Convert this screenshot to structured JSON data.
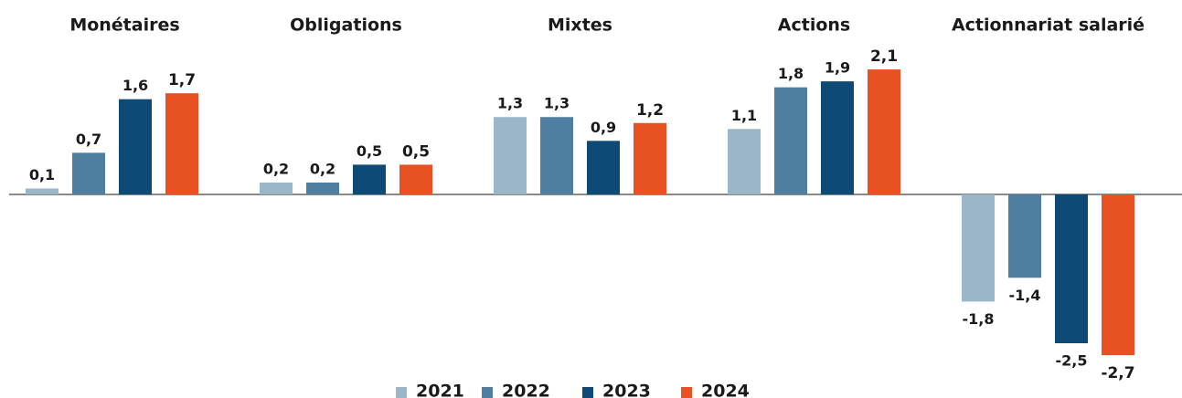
{
  "chart_data": {
    "type": "bar",
    "categories": [
      "Monétaires",
      "Obligations",
      "Mixtes",
      "Actions",
      "Actionnariat salarié"
    ],
    "series": [
      {
        "name": "2021",
        "color": "#9bb5c9",
        "values": [
          0.1,
          0.2,
          1.3,
          1.1,
          -1.8
        ],
        "value_labels": [
          "0,1",
          "0,2",
          "1,3",
          "1,1",
          "-1,8"
        ]
      },
      {
        "name": "2022",
        "color": "#4f7fa0",
        "values": [
          0.7,
          0.2,
          1.3,
          1.8,
          -1.4
        ],
        "value_labels": [
          "0,7",
          "0,2",
          "1,3",
          "1,8",
          "-1,4"
        ]
      },
      {
        "name": "2023",
        "color": "#0d4a75",
        "values": [
          1.6,
          0.5,
          0.9,
          1.9,
          -2.5
        ],
        "value_labels": [
          "1,6",
          "0,5",
          "0,9",
          "1,9",
          "-2,5"
        ]
      },
      {
        "name": "2024",
        "color": "#e85222",
        "values": [
          1.7,
          0.5,
          1.2,
          2.1,
          -2.7
        ],
        "value_labels": [
          "1,7",
          "0,5",
          "1,2",
          "2,1",
          "-2,7"
        ]
      }
    ]
  }
}
